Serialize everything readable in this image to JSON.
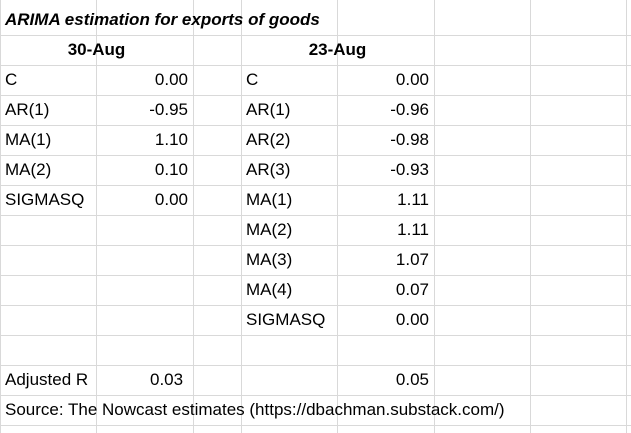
{
  "title": "ARIMA estimation for exports of goods",
  "headers": {
    "left": "30-Aug",
    "right": "23-Aug"
  },
  "left_rows": [
    {
      "label": "C",
      "value": "0.00"
    },
    {
      "label": "AR(1)",
      "value": "-0.95"
    },
    {
      "label": "MA(1)",
      "value": "1.10"
    },
    {
      "label": "MA(2)",
      "value": "0.10"
    },
    {
      "label": "SIGMASQ",
      "value": "0.00"
    }
  ],
  "right_rows": [
    {
      "label": "C",
      "value": "0.00"
    },
    {
      "label": "AR(1)",
      "value": "-0.96"
    },
    {
      "label": "AR(2)",
      "value": "-0.98"
    },
    {
      "label": "AR(3)",
      "value": "-0.93"
    },
    {
      "label": "MA(1)",
      "value": "1.11"
    },
    {
      "label": "MA(2)",
      "value": "1.11"
    },
    {
      "label": "MA(3)",
      "value": "1.07"
    },
    {
      "label": "MA(4)",
      "value": "0.07"
    },
    {
      "label": "SIGMASQ",
      "value": "0.00"
    }
  ],
  "adjusted": {
    "label": "Adjusted R",
    "left_value": "0.03",
    "right_value": "0.05"
  },
  "source": "Source: The Nowcast estimates (https://dbachman.substack.com/)"
}
